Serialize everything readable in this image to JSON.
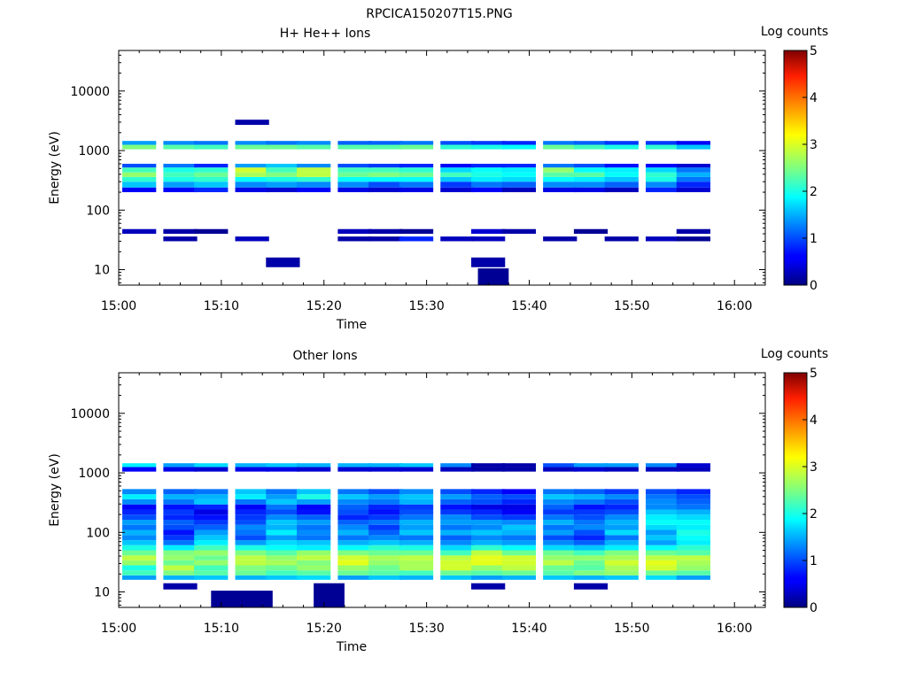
{
  "figure": {
    "title": "RPCICA150207T15.PNG"
  },
  "chart_data": [
    {
      "type": "heatmap",
      "title": "H+ He++ Ions",
      "xlabel": "Time",
      "ylabel": "Energy (eV)",
      "x_ticks": [
        "15:00",
        "15:10",
        "15:20",
        "15:30",
        "15:40",
        "15:50",
        "16:00"
      ],
      "xlim": [
        "15:00",
        "16:03"
      ],
      "y_scale": "log",
      "y_ticks": [
        "10",
        "100",
        "1000",
        "10000"
      ],
      "ylim": [
        5.5,
        48000
      ],
      "colorbar": {
        "label": "Log counts",
        "ticks": [
          "0",
          "1",
          "2",
          "3",
          "4",
          "5"
        ],
        "range": [
          0,
          5
        ],
        "colormap": "jet"
      },
      "times": [
        "15:02",
        "15:06",
        "15:09",
        "15:13",
        "15:16",
        "15:19",
        "15:23",
        "15:26",
        "15:29",
        "15:33",
        "15:36",
        "15:39",
        "15:43",
        "15:46",
        "15:49",
        "15:53",
        "15:56"
      ],
      "bins": [
        {
          "e_lo": 40,
          "e_hi": 48,
          "v": [
            0.3,
            0.2,
            0.1,
            0,
            0,
            0,
            0.3,
            0.2,
            0.1,
            0,
            0.4,
            0.2,
            0,
            0.1,
            0,
            0,
            0.2
          ]
        },
        {
          "e_lo": 30,
          "e_hi": 36,
          "v": [
            0,
            0.2,
            0,
            0.3,
            0,
            0,
            0.2,
            0.2,
            0.8,
            0.3,
            0.3,
            0,
            0.2,
            0,
            0.2,
            0.3,
            0.1
          ]
        },
        {
          "e_lo": 11,
          "e_hi": 16,
          "v": [
            0,
            0,
            0,
            0,
            0.2,
            0,
            0,
            0,
            0,
            0,
            0.2,
            0,
            0,
            0,
            0,
            0,
            0
          ]
        },
        {
          "e_lo": 200,
          "e_hi": 240,
          "v": [
            0.6,
            0.6,
            0.8,
            0.5,
            0.4,
            0.6,
            0.5,
            0.4,
            0.5,
            0.4,
            0.6,
            0.3,
            0.5,
            0.5,
            0.3,
            0.8,
            0.4
          ]
        },
        {
          "e_lo": 240,
          "e_hi": 300,
          "v": [
            1.6,
            1.4,
            1.6,
            1.3,
            1.4,
            1.3,
            1.3,
            1.0,
            1.2,
            0.9,
            1.2,
            1.1,
            1.3,
            1.3,
            1.1,
            1.3,
            0.8
          ]
        },
        {
          "e_lo": 300,
          "e_hi": 360,
          "v": [
            2.1,
            2.0,
            2.1,
            1.9,
            2.0,
            2.1,
            1.9,
            1.9,
            1.9,
            1.6,
            1.8,
            1.7,
            1.9,
            1.8,
            1.6,
            2.0,
            1.2
          ]
        },
        {
          "e_lo": 360,
          "e_hi": 430,
          "v": [
            2.6,
            2.2,
            2.4,
            2.7,
            2.5,
            2.8,
            2.4,
            2.5,
            2.4,
            2.2,
            2.0,
            1.9,
            2.3,
            2.3,
            1.9,
            2.1,
            1.5
          ]
        },
        {
          "e_lo": 430,
          "e_hi": 520,
          "v": [
            2.2,
            2.0,
            2.1,
            2.9,
            2.2,
            2.8,
            2.2,
            2.2,
            2.1,
            1.7,
            1.9,
            1.8,
            2.6,
            1.9,
            1.8,
            1.7,
            1.2
          ]
        },
        {
          "e_lo": 520,
          "e_hi": 600,
          "v": [
            1.0,
            1.2,
            0.8,
            1.4,
            1.6,
            1.3,
            1.0,
            0.9,
            0.8,
            0.6,
            0.8,
            0.8,
            1.2,
            1.0,
            0.7,
            0.6,
            0.4
          ]
        },
        {
          "e_lo": 1050,
          "e_hi": 1250,
          "v": [
            2.5,
            2.3,
            2.2,
            2.4,
            2.4,
            2.3,
            2.3,
            2.3,
            2.4,
            2.1,
            2.0,
            1.9,
            2.4,
            2.2,
            2.0,
            2.1,
            1.6
          ]
        },
        {
          "e_lo": 1250,
          "e_hi": 1450,
          "v": [
            1.4,
            1.3,
            1.2,
            1.3,
            1.2,
            1.3,
            1.1,
            1.1,
            1.2,
            1.0,
            0.9,
            0.8,
            1.2,
            1.1,
            0.9,
            0.9,
            0.6
          ]
        },
        {
          "e_lo": 2700,
          "e_hi": 3300,
          "v": [
            0,
            0,
            0,
            0.2,
            0,
            0,
            0,
            0,
            0,
            0,
            0,
            0,
            0,
            0,
            0,
            0,
            0
          ]
        }
      ],
      "note_cells": [
        {
          "t0": "15:35",
          "t1": "15:38",
          "e_lo": 5.5,
          "e_hi": 10.5,
          "v": 0.1
        }
      ]
    },
    {
      "type": "heatmap",
      "title": "Other Ions",
      "xlabel": "Time",
      "ylabel": "Energy (eV)",
      "x_ticks": [
        "15:00",
        "15:10",
        "15:20",
        "15:30",
        "15:40",
        "15:50",
        "16:00"
      ],
      "xlim": [
        "15:00",
        "16:03"
      ],
      "y_scale": "log",
      "y_ticks": [
        "10",
        "100",
        "1000",
        "10000"
      ],
      "ylim": [
        5.5,
        48000
      ],
      "colorbar": {
        "label": "Log counts",
        "ticks": [
          "0",
          "1",
          "2",
          "3",
          "4",
          "5"
        ],
        "range": [
          0,
          5
        ],
        "colormap": "jet"
      },
      "times": [
        "15:02",
        "15:06",
        "15:09",
        "15:13",
        "15:16",
        "15:19",
        "15:23",
        "15:26",
        "15:29",
        "15:33",
        "15:36",
        "15:39",
        "15:43",
        "15:46",
        "15:49",
        "15:53",
        "15:56"
      ],
      "bins": [
        {
          "e_lo": 16,
          "e_hi": 19,
          "v": [
            1.4,
            1.5,
            1.6,
            1.5,
            1.6,
            1.7,
            1.4,
            1.6,
            1.5,
            1.6,
            1.4,
            1.5,
            1.6,
            1.5,
            1.6,
            1.7,
            1.4
          ]
        },
        {
          "e_lo": 19,
          "e_hi": 23,
          "v": [
            2.2,
            2.5,
            2.3,
            2.4,
            2.2,
            2.3,
            2.4,
            2.3,
            2.2,
            2.4,
            2.3,
            2.4,
            2.3,
            2.5,
            2.6,
            2.4,
            2.3
          ]
        },
        {
          "e_lo": 23,
          "e_hi": 28,
          "v": [
            2.0,
            2.8,
            2.2,
            2.5,
            2.4,
            2.6,
            2.6,
            2.4,
            2.7,
            2.9,
            2.6,
            2.8,
            2.4,
            2.3,
            2.7,
            2.9,
            2.6
          ]
        },
        {
          "e_lo": 28,
          "e_hi": 34,
          "v": [
            2.6,
            2.4,
            2.6,
            2.8,
            2.7,
            2.5,
            3.0,
            2.6,
            2.7,
            2.9,
            3.0,
            2.9,
            2.8,
            2.4,
            2.9,
            3.0,
            2.7
          ]
        },
        {
          "e_lo": 34,
          "e_hi": 41,
          "v": [
            2.8,
            2.6,
            2.4,
            2.8,
            2.6,
            2.8,
            2.9,
            2.7,
            2.8,
            2.8,
            3.0,
            2.9,
            2.6,
            2.6,
            2.7,
            2.8,
            2.8
          ]
        },
        {
          "e_lo": 41,
          "e_hi": 50,
          "v": [
            2.4,
            2.5,
            2.6,
            2.5,
            2.3,
            2.6,
            2.5,
            2.4,
            2.4,
            2.2,
            2.8,
            2.4,
            2.4,
            2.2,
            2.5,
            2.4,
            2.3
          ]
        },
        {
          "e_lo": 50,
          "e_hi": 61,
          "v": [
            2.0,
            1.8,
            2.2,
            2.0,
            1.9,
            1.8,
            1.9,
            2.1,
            2.0,
            1.7,
            2.1,
            1.9,
            1.7,
            1.6,
            1.8,
            1.9,
            2.1
          ]
        },
        {
          "e_lo": 61,
          "e_hi": 74,
          "v": [
            1.6,
            1.2,
            1.8,
            1.4,
            1.7,
            1.6,
            1.5,
            1.6,
            1.5,
            1.3,
            1.5,
            1.4,
            1.3,
            1.1,
            1.5,
            1.4,
            1.8
          ]
        },
        {
          "e_lo": 74,
          "e_hi": 90,
          "v": [
            1.3,
            0.9,
            1.6,
            1.0,
            1.4,
            1.2,
            1.2,
            1.3,
            1.2,
            1.1,
            1.3,
            1.2,
            1.0,
            0.8,
            1.2,
            1.6,
            1.9
          ]
        },
        {
          "e_lo": 90,
          "e_hi": 110,
          "v": [
            1.5,
            0.7,
            1.4,
            1.2,
            1.8,
            1.3,
            1.5,
            1.1,
            1.6,
            1.5,
            1.6,
            1.5,
            1.4,
            1.0,
            1.7,
            1.4,
            2.0
          ]
        },
        {
          "e_lo": 110,
          "e_hi": 134,
          "v": [
            1.2,
            1.0,
            1.1,
            1.3,
            1.5,
            1.2,
            1.3,
            0.9,
            1.4,
            1.2,
            1.3,
            1.6,
            1.2,
            1.3,
            1.4,
            1.7,
            1.8
          ]
        },
        {
          "e_lo": 134,
          "e_hi": 163,
          "v": [
            1.4,
            1.1,
            0.9,
            1.0,
            1.6,
            1.4,
            1.1,
            1.2,
            1.5,
            1.4,
            1.4,
            1.3,
            1.5,
            1.2,
            1.5,
            1.9,
            1.9
          ]
        },
        {
          "e_lo": 163,
          "e_hi": 199,
          "v": [
            1.0,
            0.8,
            0.7,
            0.9,
            1.3,
            1.1,
            0.8,
            0.9,
            1.2,
            1.3,
            1.0,
            0.9,
            1.2,
            1.0,
            1.3,
            1.8,
            1.7
          ]
        },
        {
          "e_lo": 199,
          "e_hi": 242,
          "v": [
            0.8,
            0.9,
            0.5,
            0.8,
            1.0,
            0.7,
            1.0,
            0.7,
            1.0,
            0.9,
            0.8,
            0.6,
            0.9,
            0.9,
            1.0,
            1.6,
            1.5
          ]
        },
        {
          "e_lo": 242,
          "e_hi": 295,
          "v": [
            0.6,
            0.7,
            0.8,
            0.6,
            1.2,
            0.6,
            1.1,
            0.8,
            0.9,
            0.7,
            0.5,
            0.5,
            1.1,
            0.7,
            0.8,
            1.3,
            1.2
          ]
        },
        {
          "e_lo": 295,
          "e_hi": 360,
          "v": [
            1.3,
            1.2,
            1.6,
            1.2,
            1.6,
            1.4,
            1.3,
            1.2,
            1.5,
            1.1,
            1.0,
            0.8,
            1.3,
            1.2,
            1.0,
            1.3,
            1.1
          ]
        },
        {
          "e_lo": 360,
          "e_hi": 438,
          "v": [
            1.8,
            1.5,
            1.5,
            1.8,
            1.4,
            2.0,
            1.6,
            1.4,
            1.6,
            1.4,
            1.1,
            1.0,
            1.6,
            1.5,
            1.3,
            1.2,
            1.0
          ]
        },
        {
          "e_lo": 438,
          "e_hi": 534,
          "v": [
            1.3,
            1.1,
            1.2,
            1.6,
            1.2,
            1.6,
            1.2,
            1.0,
            1.3,
            1.0,
            0.8,
            0.6,
            1.2,
            1.1,
            0.9,
            1.0,
            0.8
          ]
        },
        {
          "e_lo": 1250,
          "e_hi": 1450,
          "v": [
            1.8,
            1.4,
            1.7,
            1.5,
            1.6,
            1.5,
            1.5,
            1.5,
            1.6,
            1.3,
            0.2,
            0.2,
            1.0,
            1.4,
            1.4,
            1.3,
            0.4
          ]
        },
        {
          "e_lo": 1050,
          "e_hi": 1250,
          "v": [
            0.6,
            0.5,
            0.4,
            0.5,
            0.5,
            0.4,
            0.4,
            0.4,
            0.4,
            0.3,
            0.2,
            0.2,
            0.3,
            0.4,
            0.3,
            0.3,
            0.3
          ]
        },
        {
          "e_lo": 11,
          "e_hi": 14,
          "v": [
            0,
            0.2,
            0,
            0,
            0,
            0,
            0,
            0,
            0,
            0,
            0.2,
            0,
            0,
            0.2,
            0,
            0,
            0
          ]
        }
      ],
      "note_cells": [
        {
          "t0": "15:09",
          "t1": "15:15",
          "e_lo": 5.5,
          "e_hi": 10.5,
          "v": 0.1
        },
        {
          "t0": "15:19",
          "t1": "15:22",
          "e_lo": 5.5,
          "e_hi": 14,
          "v": 0.1
        }
      ]
    }
  ]
}
